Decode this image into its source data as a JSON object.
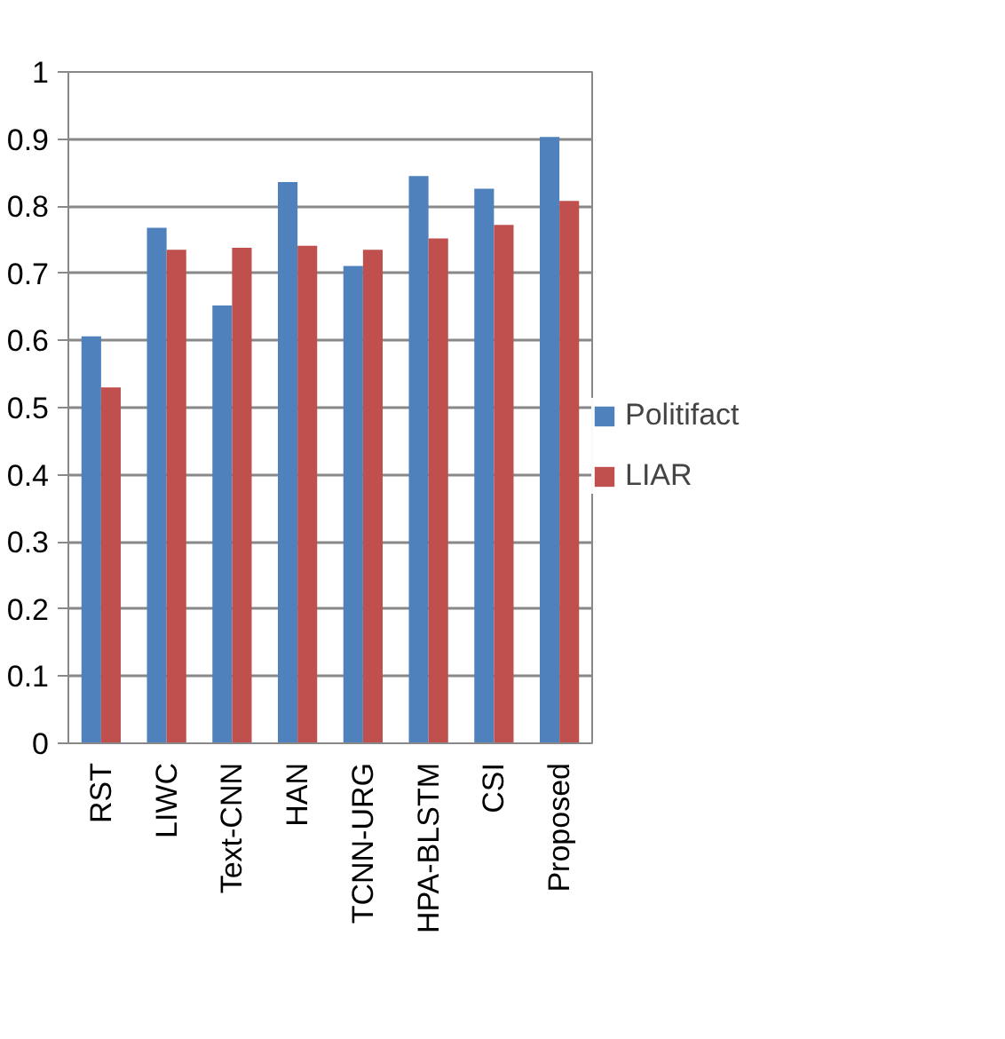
{
  "chart_data": {
    "type": "bar",
    "categories": [
      "RST",
      "LIWC",
      "Text-CNN",
      "HAN",
      "TCNN-URG",
      "HPA-BLSTM",
      "CSI",
      "Proposed"
    ],
    "series": [
      {
        "name": "Politifact",
        "color": "#4f81bd",
        "values": [
          0.606,
          0.768,
          0.652,
          0.836,
          0.711,
          0.845,
          0.826,
          0.903
        ]
      },
      {
        "name": "LIAR",
        "color": "#c0504d",
        "values": [
          0.53,
          0.735,
          0.738,
          0.741,
          0.735,
          0.752,
          0.772,
          0.808
        ]
      }
    ],
    "ylim": [
      0,
      1
    ],
    "yticks": [
      0,
      {
        "value": 0.1,
        "label": "0.1"
      },
      {
        "value": 0.2,
        "label": "0.2"
      },
      {
        "value": 0.3,
        "label": "0.3"
      },
      {
        "value": 0.4,
        "label": "0.4"
      },
      {
        "value": 0.5,
        "label": "0.5"
      },
      {
        "value": 0.6,
        "label": "0.6"
      },
      {
        "value": 0.7,
        "label": "0.7"
      },
      {
        "value": 0.8,
        "label": "0.8"
      },
      {
        "value": 0.9,
        "label": "0.9"
      },
      1
    ],
    "grid": "y",
    "legend": "right"
  }
}
